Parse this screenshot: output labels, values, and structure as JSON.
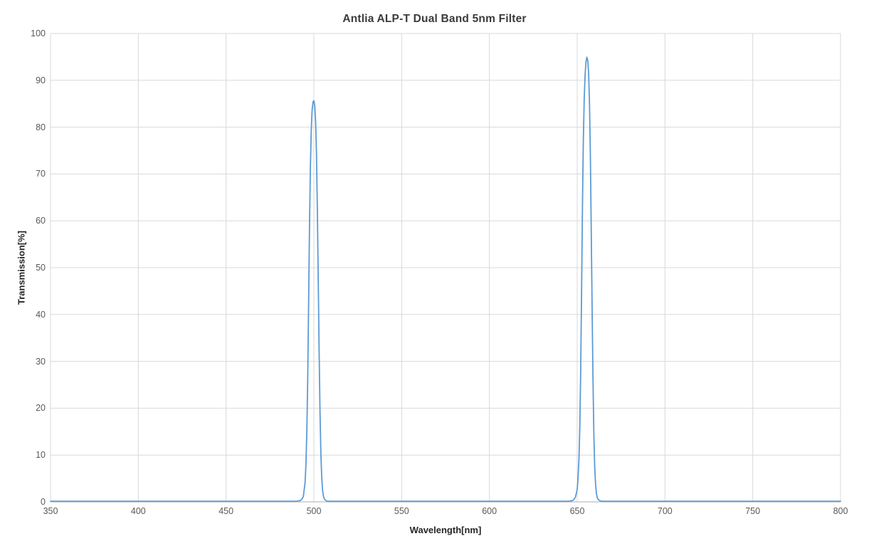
{
  "chart_data": {
    "type": "line",
    "title": "Antlia ALP-T Dual Band 5nm Filter",
    "xlabel": "Wavelength[nm]",
    "ylabel": "Transmission[%]",
    "xlim": [
      350,
      800
    ],
    "ylim": [
      0,
      100
    ],
    "x_ticks": [
      350,
      400,
      450,
      500,
      550,
      600,
      650,
      700,
      750,
      800
    ],
    "y_ticks": [
      0,
      10,
      20,
      30,
      40,
      50,
      60,
      70,
      80,
      90,
      100
    ],
    "grid": true,
    "legend": "none",
    "colors": {
      "line": "#5B9BD5",
      "gridline": "#D9D9D9",
      "axis_line": "#BFBFBF",
      "title_text": "#3B3B3B",
      "axis_title_text": "#262626",
      "tick_text": "#595959",
      "background": "#FFFFFF"
    },
    "bands": [
      {
        "approx_center_nm": 500,
        "peak_transmission_pct": 85.5
      },
      {
        "approx_center_nm": 655.5,
        "peak_transmission_pct": 94.8
      }
    ],
    "series": [
      {
        "name": "Transmission",
        "points": [
          [
            350,
            0
          ],
          [
            360,
            0
          ],
          [
            370,
            0
          ],
          [
            380,
            0
          ],
          [
            390,
            0
          ],
          [
            400,
            0
          ],
          [
            410,
            0
          ],
          [
            420,
            0
          ],
          [
            430,
            0
          ],
          [
            440,
            0
          ],
          [
            450,
            0
          ],
          [
            460,
            0
          ],
          [
            470,
            0
          ],
          [
            480,
            0
          ],
          [
            485,
            0
          ],
          [
            490,
            0
          ],
          [
            491,
            0.05
          ],
          [
            492,
            0.12
          ],
          [
            493,
            0.35
          ],
          [
            494,
            1
          ],
          [
            495,
            4
          ],
          [
            495.5,
            8
          ],
          [
            496,
            15
          ],
          [
            496.5,
            26
          ],
          [
            497,
            42
          ],
          [
            497.5,
            58
          ],
          [
            498,
            71
          ],
          [
            498.5,
            79
          ],
          [
            499,
            83.5
          ],
          [
            499.5,
            85.2
          ],
          [
            500,
            85.5
          ],
          [
            500.5,
            84.5
          ],
          [
            501,
            81
          ],
          [
            501.5,
            74
          ],
          [
            502,
            62
          ],
          [
            502.5,
            47
          ],
          [
            503,
            32
          ],
          [
            503.5,
            19
          ],
          [
            504,
            10
          ],
          [
            504.5,
            5
          ],
          [
            505,
            2.2
          ],
          [
            505.5,
            1
          ],
          [
            506,
            0.45
          ],
          [
            507,
            0.1
          ],
          [
            508,
            0
          ],
          [
            510,
            0
          ],
          [
            515,
            0
          ],
          [
            520,
            0
          ],
          [
            530,
            0
          ],
          [
            540,
            0
          ],
          [
            550,
            0
          ],
          [
            560,
            0
          ],
          [
            570,
            0
          ],
          [
            580,
            0
          ],
          [
            590,
            0
          ],
          [
            600,
            0
          ],
          [
            610,
            0
          ],
          [
            620,
            0
          ],
          [
            630,
            0
          ],
          [
            640,
            0
          ],
          [
            645,
            0
          ],
          [
            646,
            0.05
          ],
          [
            647,
            0.1
          ],
          [
            648,
            0.3
          ],
          [
            649,
            0.9
          ],
          [
            650,
            2.5
          ],
          [
            650.5,
            5
          ],
          [
            651,
            9
          ],
          [
            651.5,
            16
          ],
          [
            652,
            28
          ],
          [
            652.5,
            45
          ],
          [
            653,
            63
          ],
          [
            653.5,
            77
          ],
          [
            654,
            86
          ],
          [
            654.5,
            91
          ],
          [
            655,
            93.8
          ],
          [
            655.5,
            94.8
          ],
          [
            656,
            94.1
          ],
          [
            656.5,
            91.5
          ],
          [
            657,
            85
          ],
          [
            657.5,
            74
          ],
          [
            658,
            58
          ],
          [
            658.5,
            41
          ],
          [
            659,
            26
          ],
          [
            659.5,
            14
          ],
          [
            660,
            7
          ],
          [
            660.5,
            3.5
          ],
          [
            661,
            1.5
          ],
          [
            661.5,
            0.7
          ],
          [
            662,
            0.35
          ],
          [
            663,
            0.1
          ],
          [
            664,
            0
          ],
          [
            666,
            0
          ],
          [
            670,
            0
          ],
          [
            680,
            0
          ],
          [
            690,
            0
          ],
          [
            700,
            0
          ],
          [
            710,
            0
          ],
          [
            720,
            0
          ],
          [
            730,
            0
          ],
          [
            740,
            0
          ],
          [
            750,
            0
          ],
          [
            760,
            0
          ],
          [
            770,
            0
          ],
          [
            780,
            0
          ],
          [
            790,
            0
          ],
          [
            800,
            0
          ]
        ]
      }
    ]
  }
}
